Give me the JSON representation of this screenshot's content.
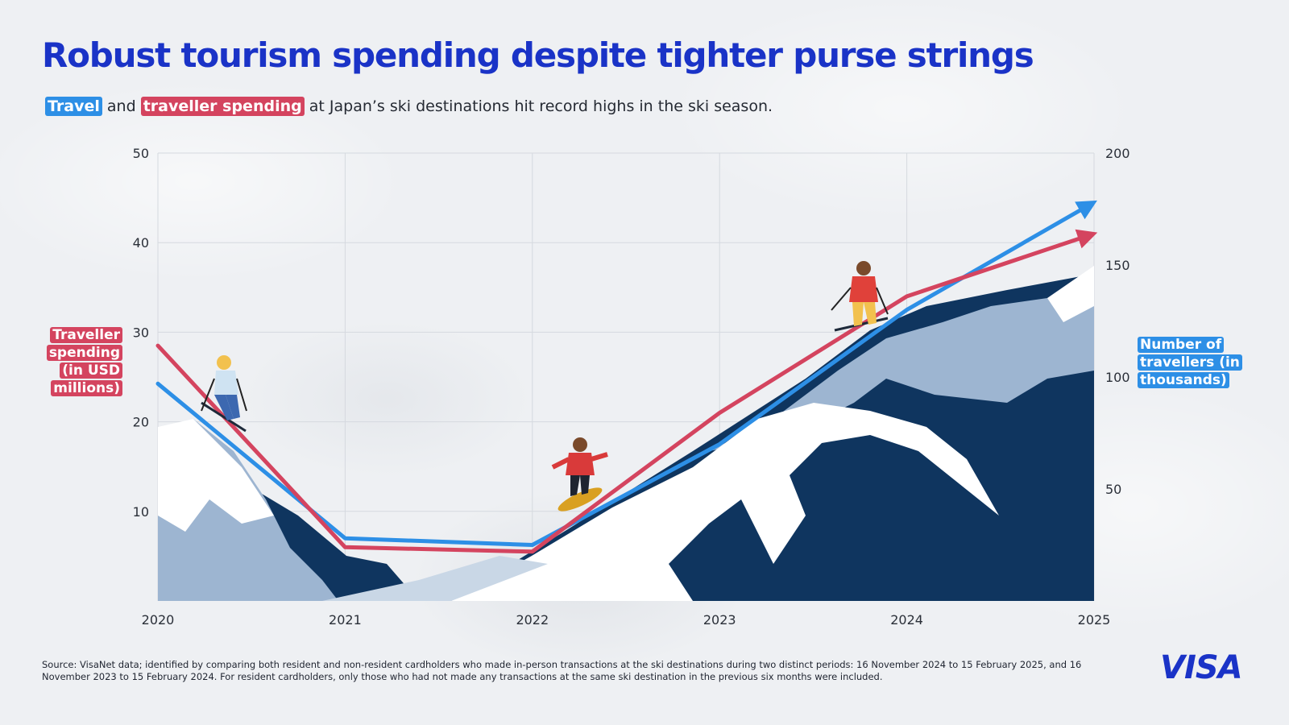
{
  "title": "Robust tourism spending despite tighter purse strings",
  "subtitle": {
    "highlight_1": "Travel",
    "connector": "and",
    "highlight_2": "traveller spending",
    "rest": "at Japan’s ski destinations hit record highs in the ski season."
  },
  "colors": {
    "title": "#1a33c7",
    "travel": "#2d8fe6",
    "spending": "#d4445f",
    "mountain_dark": "#0f355f",
    "mountain_mid": "#9db5d1",
    "snow": "#ffffff"
  },
  "chart_data": {
    "type": "line",
    "x": [
      2020,
      2021,
      2022,
      2023,
      2024,
      2025
    ],
    "x_tick_labels": [
      "2020",
      "2021",
      "2022",
      "2023",
      "2024",
      "2025"
    ],
    "series": [
      {
        "name": "Traveller spending (in USD millions)",
        "axis": "left",
        "color": "#d4445f",
        "x": [
          2020,
          2021,
          2022,
          2023,
          2024,
          2025
        ],
        "values": [
          28.5,
          6.0,
          5.5,
          21.0,
          34.0,
          41.0
        ]
      },
      {
        "name": "Number of travellers (in thousands)",
        "axis": "right",
        "color": "#2d8fe6",
        "x": [
          2020,
          2021,
          2022,
          2023,
          2024,
          2025
        ],
        "values": [
          97,
          28,
          25,
          70,
          130,
          178
        ]
      }
    ],
    "left_axis": {
      "label_lines": [
        "Traveller",
        "spending",
        "(in USD",
        "millions)"
      ],
      "ticks": [
        10,
        20,
        30,
        40,
        50
      ],
      "tick_labels": [
        "10",
        "20",
        "30",
        "40",
        "50"
      ],
      "range": [
        0,
        50
      ]
    },
    "right_axis": {
      "label_lines": [
        "Number of",
        "travellers (in",
        "thousands)"
      ],
      "ticks": [
        50,
        100,
        150,
        200
      ],
      "tick_labels": [
        "50",
        "100",
        "150",
        "200"
      ],
      "range": [
        0,
        200
      ]
    },
    "grid": true,
    "legend": "none"
  },
  "illustration": {
    "skiers": [
      "skier-icon",
      "snowboarder-icon",
      "skier-icon"
    ]
  },
  "source_note": "Source: VisaNet data; identified by comparing both resident and non-resident cardholders who made in-person transactions at the ski destinations during two distinct periods: 16 November 2024 to 15 February 2025, and 16 November 2023 to 15 February 2024. For resident cardholders, only those who had not made any transactions at the same ski destination in the previous six months were included.",
  "logo": "VISA"
}
